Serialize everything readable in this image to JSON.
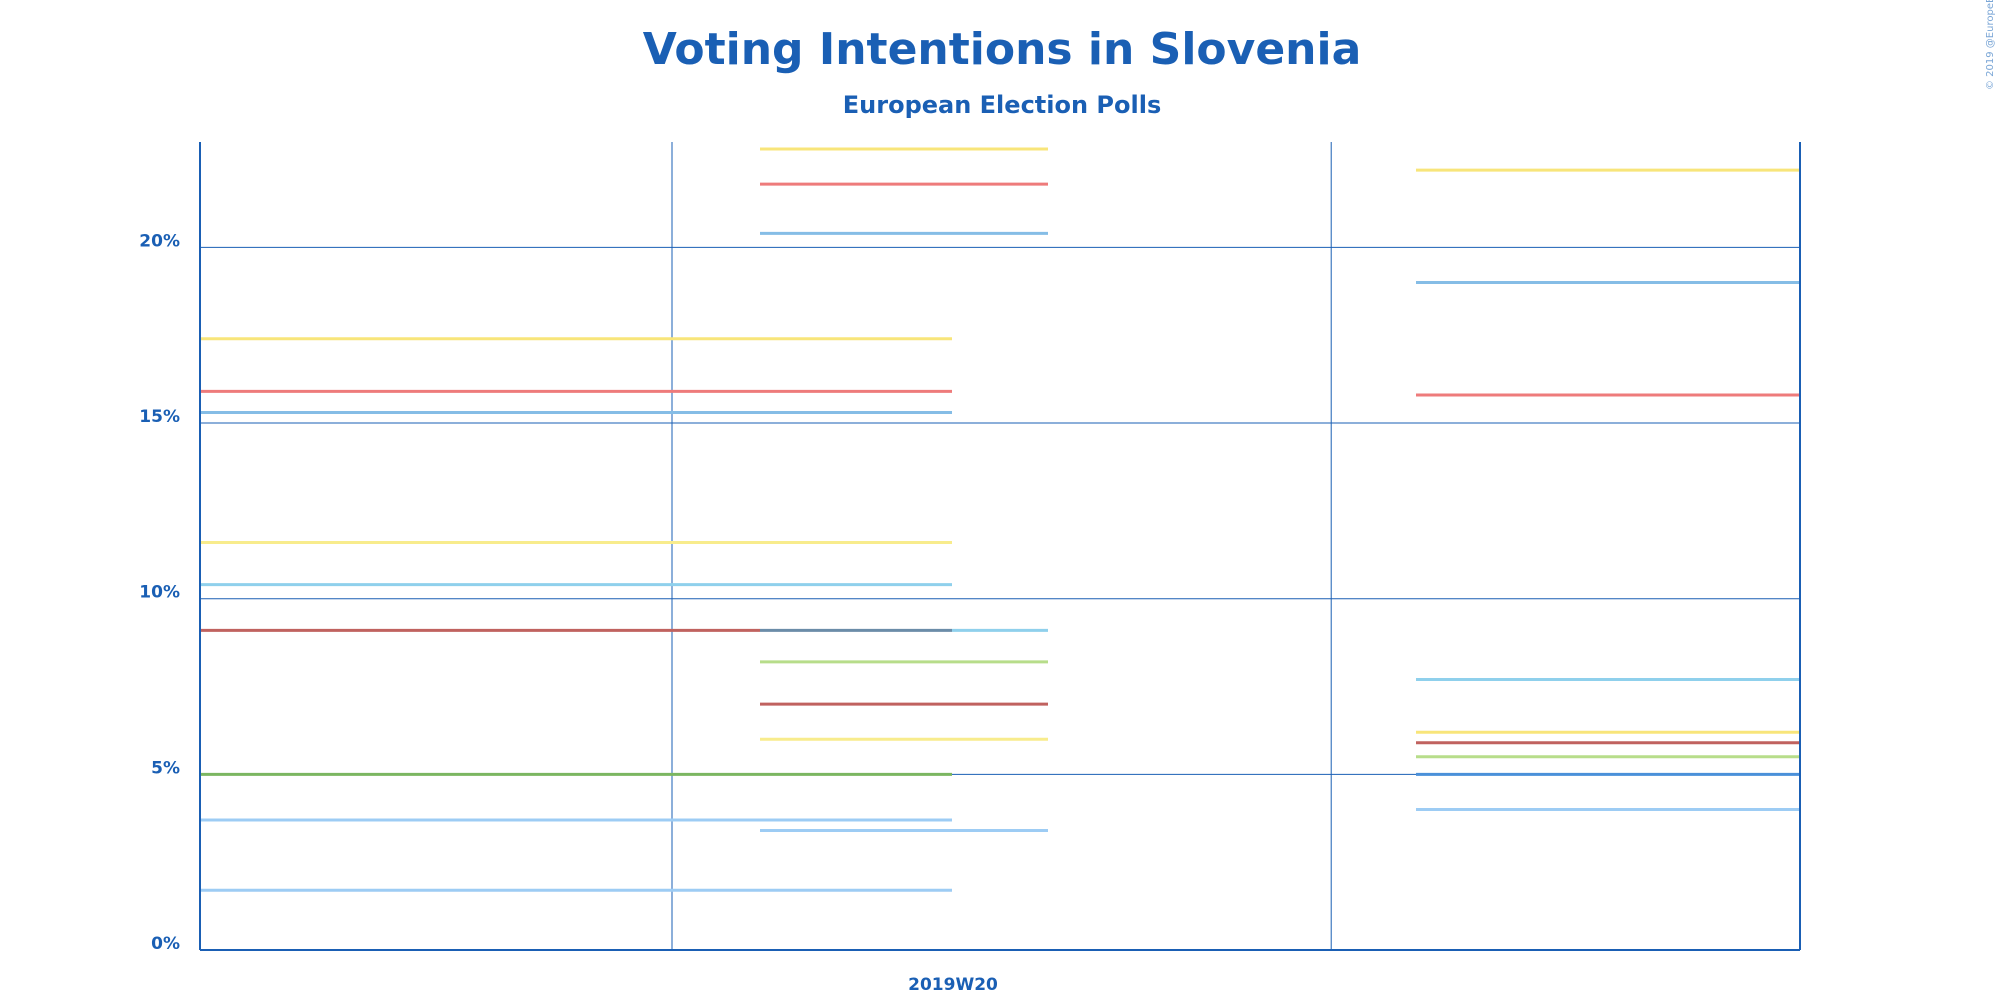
{
  "chart_data": {
    "type": "line",
    "title": "Voting Intentions in Slovenia",
    "subtitle": "European Election Polls",
    "copyright": "© 2019 @EuropeElects",
    "xlabel": "",
    "ylabel": "",
    "x_tick_labels": [
      "2019W20"
    ],
    "y_ticks": [
      {
        "value": 0,
        "label": "0%"
      },
      {
        "value": 5,
        "label": "5%"
      },
      {
        "value": 10,
        "label": "10%"
      },
      {
        "value": 15,
        "label": "15%"
      },
      {
        "value": 20,
        "label": "20%"
      }
    ],
    "ylim": [
      0,
      23
    ],
    "x_range": [
      0,
      100
    ],
    "grid": true,
    "series": [
      {
        "color": "#f8e57a",
        "values": [
          {
            "x_start": 0,
            "x_end": 47,
            "y": 17.4
          }
        ]
      },
      {
        "color": "#ee7b7b",
        "values": [
          {
            "x_start": 0,
            "x_end": 47,
            "y": 15.9
          }
        ]
      },
      {
        "color": "#85bde6",
        "values": [
          {
            "x_start": 0,
            "x_end": 47,
            "y": 15.3
          }
        ]
      },
      {
        "color": "#f8ec8c",
        "values": [
          {
            "x_start": 0,
            "x_end": 47,
            "y": 11.6
          }
        ]
      },
      {
        "color": "#8fd0ec",
        "values": [
          {
            "x_start": 0,
            "x_end": 47,
            "y": 10.4
          }
        ]
      },
      {
        "color": "#c0625f",
        "values": [
          {
            "x_start": 0,
            "x_end": 35,
            "y": 9.1
          }
        ]
      },
      {
        "color": "#6b8ca8",
        "values": [
          {
            "x_start": 35,
            "x_end": 47,
            "y": 9.1
          }
        ]
      },
      {
        "color": "#7bb661",
        "values": [
          {
            "x_start": 0,
            "x_end": 47,
            "y": 5.0
          }
        ]
      },
      {
        "color": "#9dccf4",
        "values": [
          {
            "x_start": 0,
            "x_end": 47,
            "y": 3.7
          }
        ]
      },
      {
        "color": "#9dccf4",
        "values": [
          {
            "x_start": 0,
            "x_end": 47,
            "y": 1.7
          }
        ]
      },
      {
        "color": "#f8e57a",
        "values": [
          {
            "x_start": 35,
            "x_end": 53,
            "y": 22.8
          }
        ]
      },
      {
        "color": "#ee7b7b",
        "values": [
          {
            "x_start": 35,
            "x_end": 53,
            "y": 21.8
          }
        ]
      },
      {
        "color": "#85bde6",
        "values": [
          {
            "x_start": 35,
            "x_end": 53,
            "y": 20.4
          }
        ]
      },
      {
        "color": "#8fd0ec",
        "values": [
          {
            "x_start": 47,
            "x_end": 53,
            "y": 9.1
          }
        ]
      },
      {
        "color": "#b7dd8a",
        "values": [
          {
            "x_start": 35,
            "x_end": 53,
            "y": 8.2
          }
        ]
      },
      {
        "color": "#c0625f",
        "values": [
          {
            "x_start": 35,
            "x_end": 53,
            "y": 7.0
          }
        ]
      },
      {
        "color": "#f8ec8c",
        "values": [
          {
            "x_start": 35,
            "x_end": 53,
            "y": 6.0
          }
        ]
      },
      {
        "color": "#9dccf4",
        "values": [
          {
            "x_start": 35,
            "x_end": 53,
            "y": 3.4
          }
        ]
      },
      {
        "color": "#f8e57a",
        "values": [
          {
            "x_start": 76,
            "x_end": 100,
            "y": 22.2
          }
        ]
      },
      {
        "color": "#85bde6",
        "values": [
          {
            "x_start": 76,
            "x_end": 100,
            "y": 19.0
          }
        ]
      },
      {
        "color": "#ee7b7b",
        "values": [
          {
            "x_start": 76,
            "x_end": 100,
            "y": 15.8
          }
        ]
      },
      {
        "color": "#8fd0ec",
        "values": [
          {
            "x_start": 76,
            "x_end": 100,
            "y": 7.7
          }
        ]
      },
      {
        "color": "#f8e57a",
        "values": [
          {
            "x_start": 76,
            "x_end": 100,
            "y": 6.2
          }
        ]
      },
      {
        "color": "#c0625f",
        "values": [
          {
            "x_start": 76,
            "x_end": 100,
            "y": 5.9
          }
        ]
      },
      {
        "color": "#b7dd8a",
        "values": [
          {
            "x_start": 76,
            "x_end": 100,
            "y": 5.5
          }
        ]
      },
      {
        "color": "#4a90d9",
        "values": [
          {
            "x_start": 76,
            "x_end": 100,
            "y": 5.0
          }
        ]
      },
      {
        "color": "#9dccf4",
        "values": [
          {
            "x_start": 76,
            "x_end": 100,
            "y": 4.0
          }
        ]
      }
    ]
  }
}
